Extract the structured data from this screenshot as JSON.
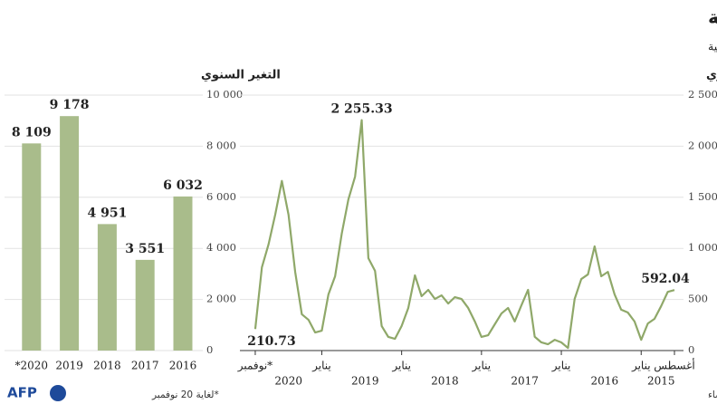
{
  "header": {
    "title": "إزالة الغابات في منطقة الأمازون البرازيلية",
    "subtitle": "بالكيلومتر المربع، وفقا لنظام «ديتر» الذي يستند إلى تبليغات بحصول عمليات قطع أشجار غابات، عبر الأقمار الاصطناعية"
  },
  "chart_data": [
    {
      "type": "bar",
      "title": "التغير السنوي",
      "categories": [
        "2016",
        "2017",
        "2018",
        "2019",
        "*2020"
      ],
      "values": [
        6032,
        3551,
        4951,
        9178,
        8109
      ],
      "value_labels": [
        "6 032",
        "3 551",
        "4 951",
        "9 178",
        "8 109"
      ],
      "color": "#a9bc8b",
      "ylim": [
        0,
        10000
      ],
      "yticks": [
        0,
        {
          "value": 2000,
          "label": "2 000"
        },
        {
          "value": 4000,
          "label": "4 000"
        },
        {
          "value": 6000,
          "label": "6 000"
        },
        {
          "value": 8000,
          "label": "8 000"
        },
        {
          "value": 10000,
          "label": "10 000"
        }
      ],
      "grid": true
    },
    {
      "type": "line",
      "title": "التغير الشهري",
      "categories": [
        "أغسطس",
        null,
        null,
        null,
        null,
        "يناير",
        null,
        null,
        null,
        null,
        null,
        null,
        null,
        null,
        null,
        null,
        null,
        "يناير",
        null,
        null,
        null,
        null,
        null,
        null,
        null,
        null,
        null,
        null,
        null,
        "يناير",
        null,
        null,
        null,
        null,
        null,
        null,
        null,
        null,
        null,
        null,
        null,
        "يناير",
        null,
        null,
        null,
        null,
        null,
        null,
        null,
        null,
        null,
        null,
        null,
        "يناير",
        null,
        null,
        null,
        null,
        null,
        null,
        null,
        null,
        null,
        "نوفمبر*"
      ],
      "years": [
        "2015",
        "2016",
        "2017",
        "2018",
        "2019",
        "2020"
      ],
      "values": [
        592.04,
        575,
        435,
        310,
        265,
        105,
        285,
        372,
        400,
        550,
        770,
        727,
        1020,
        745,
        700,
        505,
        25,
        80,
        105,
        62,
        80,
        135,
        594,
        443,
        285,
        417,
        363,
        257,
        150,
        133,
        285,
        417,
        505,
        523,
        460,
        540,
        505,
        594,
        532,
        736,
        417,
        240,
        115,
        133,
        240,
        780,
        904,
        2255.33,
        1702,
        1480,
        1144,
        727,
        550,
        195,
        177,
        301,
        355,
        770,
        1330,
        1660,
        1330,
        1040,
        815,
        210.73
      ],
      "value_labels": [
        "592.04",
        null,
        null,
        null,
        null,
        null,
        null,
        null,
        null,
        null,
        null,
        null,
        null,
        null,
        null,
        null,
        null,
        null,
        null,
        null,
        null,
        null,
        null,
        null,
        null,
        null,
        null,
        null,
        null,
        null,
        null,
        null,
        null,
        null,
        null,
        null,
        null,
        null,
        null,
        null,
        null,
        null,
        null,
        null,
        null,
        null,
        null,
        "2 255.33",
        null,
        null,
        null,
        null,
        null,
        null,
        null,
        null,
        null,
        null,
        null,
        null,
        null,
        null,
        null,
        "210.73"
      ],
      "color": "#8fa869",
      "ylim": [
        0,
        2500
      ],
      "yticks": [
        0,
        500,
        {
          "value": 1000,
          "label": "1 000"
        },
        {
          "value": 1500,
          "label": "1 500"
        },
        {
          "value": 2000,
          "label": "2 000"
        },
        {
          "value": 2500,
          "label": "2 500"
        }
      ],
      "grid": true
    }
  ],
  "footer": {
    "note": "*لغاية 20 نوفمبر",
    "source": "المصدر: المعهد الوطني لأبحاث الفضاء",
    "logo": "AFP"
  }
}
